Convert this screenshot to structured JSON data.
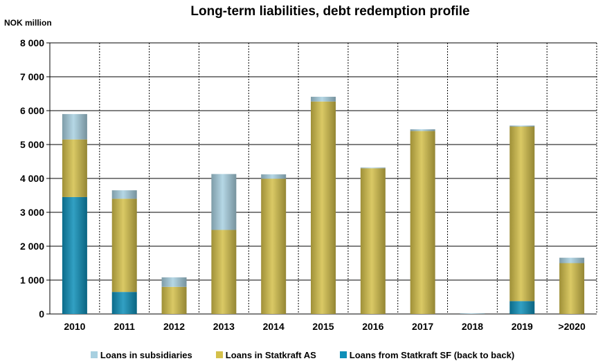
{
  "chart_data": {
    "type": "bar",
    "stacked": true,
    "title": "Long-term liabilities, debt redemption profile",
    "ylabel": "NOK million",
    "xlabel": "",
    "categories": [
      "2010",
      "2011",
      "2012",
      "2013",
      "2014",
      "2015",
      "2016",
      "2017",
      "2018",
      "2019",
      ">2020"
    ],
    "ylim": [
      0,
      8000
    ],
    "yticks": [
      0,
      1000,
      2000,
      3000,
      4000,
      5000,
      6000,
      7000,
      8000
    ],
    "ytick_labels": [
      "0",
      "1 000",
      "2 000",
      "3 000",
      "4 000",
      "5 000",
      "6 000",
      "7 000",
      "8 000"
    ],
    "series": [
      {
        "name": "Loans from Statkraft SF (back to back)",
        "color": "#0e8fb8",
        "values": [
          3450,
          650,
          0,
          0,
          0,
          0,
          0,
          0,
          0,
          380,
          0
        ]
      },
      {
        "name": "Loans in Statkraft AS",
        "color": "#d4c04a",
        "values": [
          1700,
          2750,
          800,
          2480,
          3990,
          6270,
          4300,
          5400,
          0,
          5150,
          1500
        ]
      },
      {
        "name": "Loans in subsidiaries",
        "color": "#a8d0e0",
        "values": [
          750,
          250,
          280,
          1650,
          130,
          140,
          20,
          50,
          20,
          30,
          160
        ]
      }
    ],
    "legend_order": [
      "Loans in subsidiaries",
      "Loans in Statkraft AS",
      "Loans from Statkraft SF (back to back)"
    ],
    "grid": {
      "horizontal": true,
      "vertical_dashed": true
    },
    "legend_position": "bottom"
  }
}
